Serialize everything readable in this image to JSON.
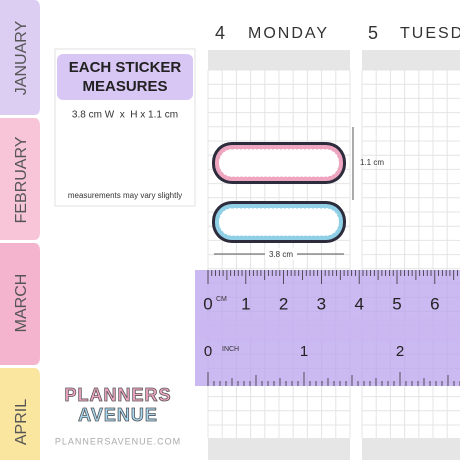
{
  "tabs": [
    "JANUARY",
    "FEBRUARY",
    "MARCH",
    "APRIL"
  ],
  "days": [
    {
      "number": "4",
      "name": "MONDAY"
    },
    {
      "number": "5",
      "name": "TUESD"
    }
  ],
  "info": {
    "title_lines": [
      "EACH STICKER",
      "MEASURES"
    ],
    "dimensions": "3.8 cm W  x  H x 1.1 cm",
    "note": "measurements may vary slightly"
  },
  "dimension_labels": {
    "height": "1.1 cm",
    "width": "3.8 cm"
  },
  "ruler": {
    "cm_unit": "CM",
    "cm_numbers": [
      0,
      1,
      2,
      3,
      4,
      5,
      6
    ],
    "inch_unit": "INCH",
    "inch_numbers": [
      0,
      1,
      2
    ]
  },
  "logo": {
    "lines": [
      "PLANNERS",
      "AVENUE"
    ],
    "website": "PLANNERSAVENUE.COM"
  }
}
